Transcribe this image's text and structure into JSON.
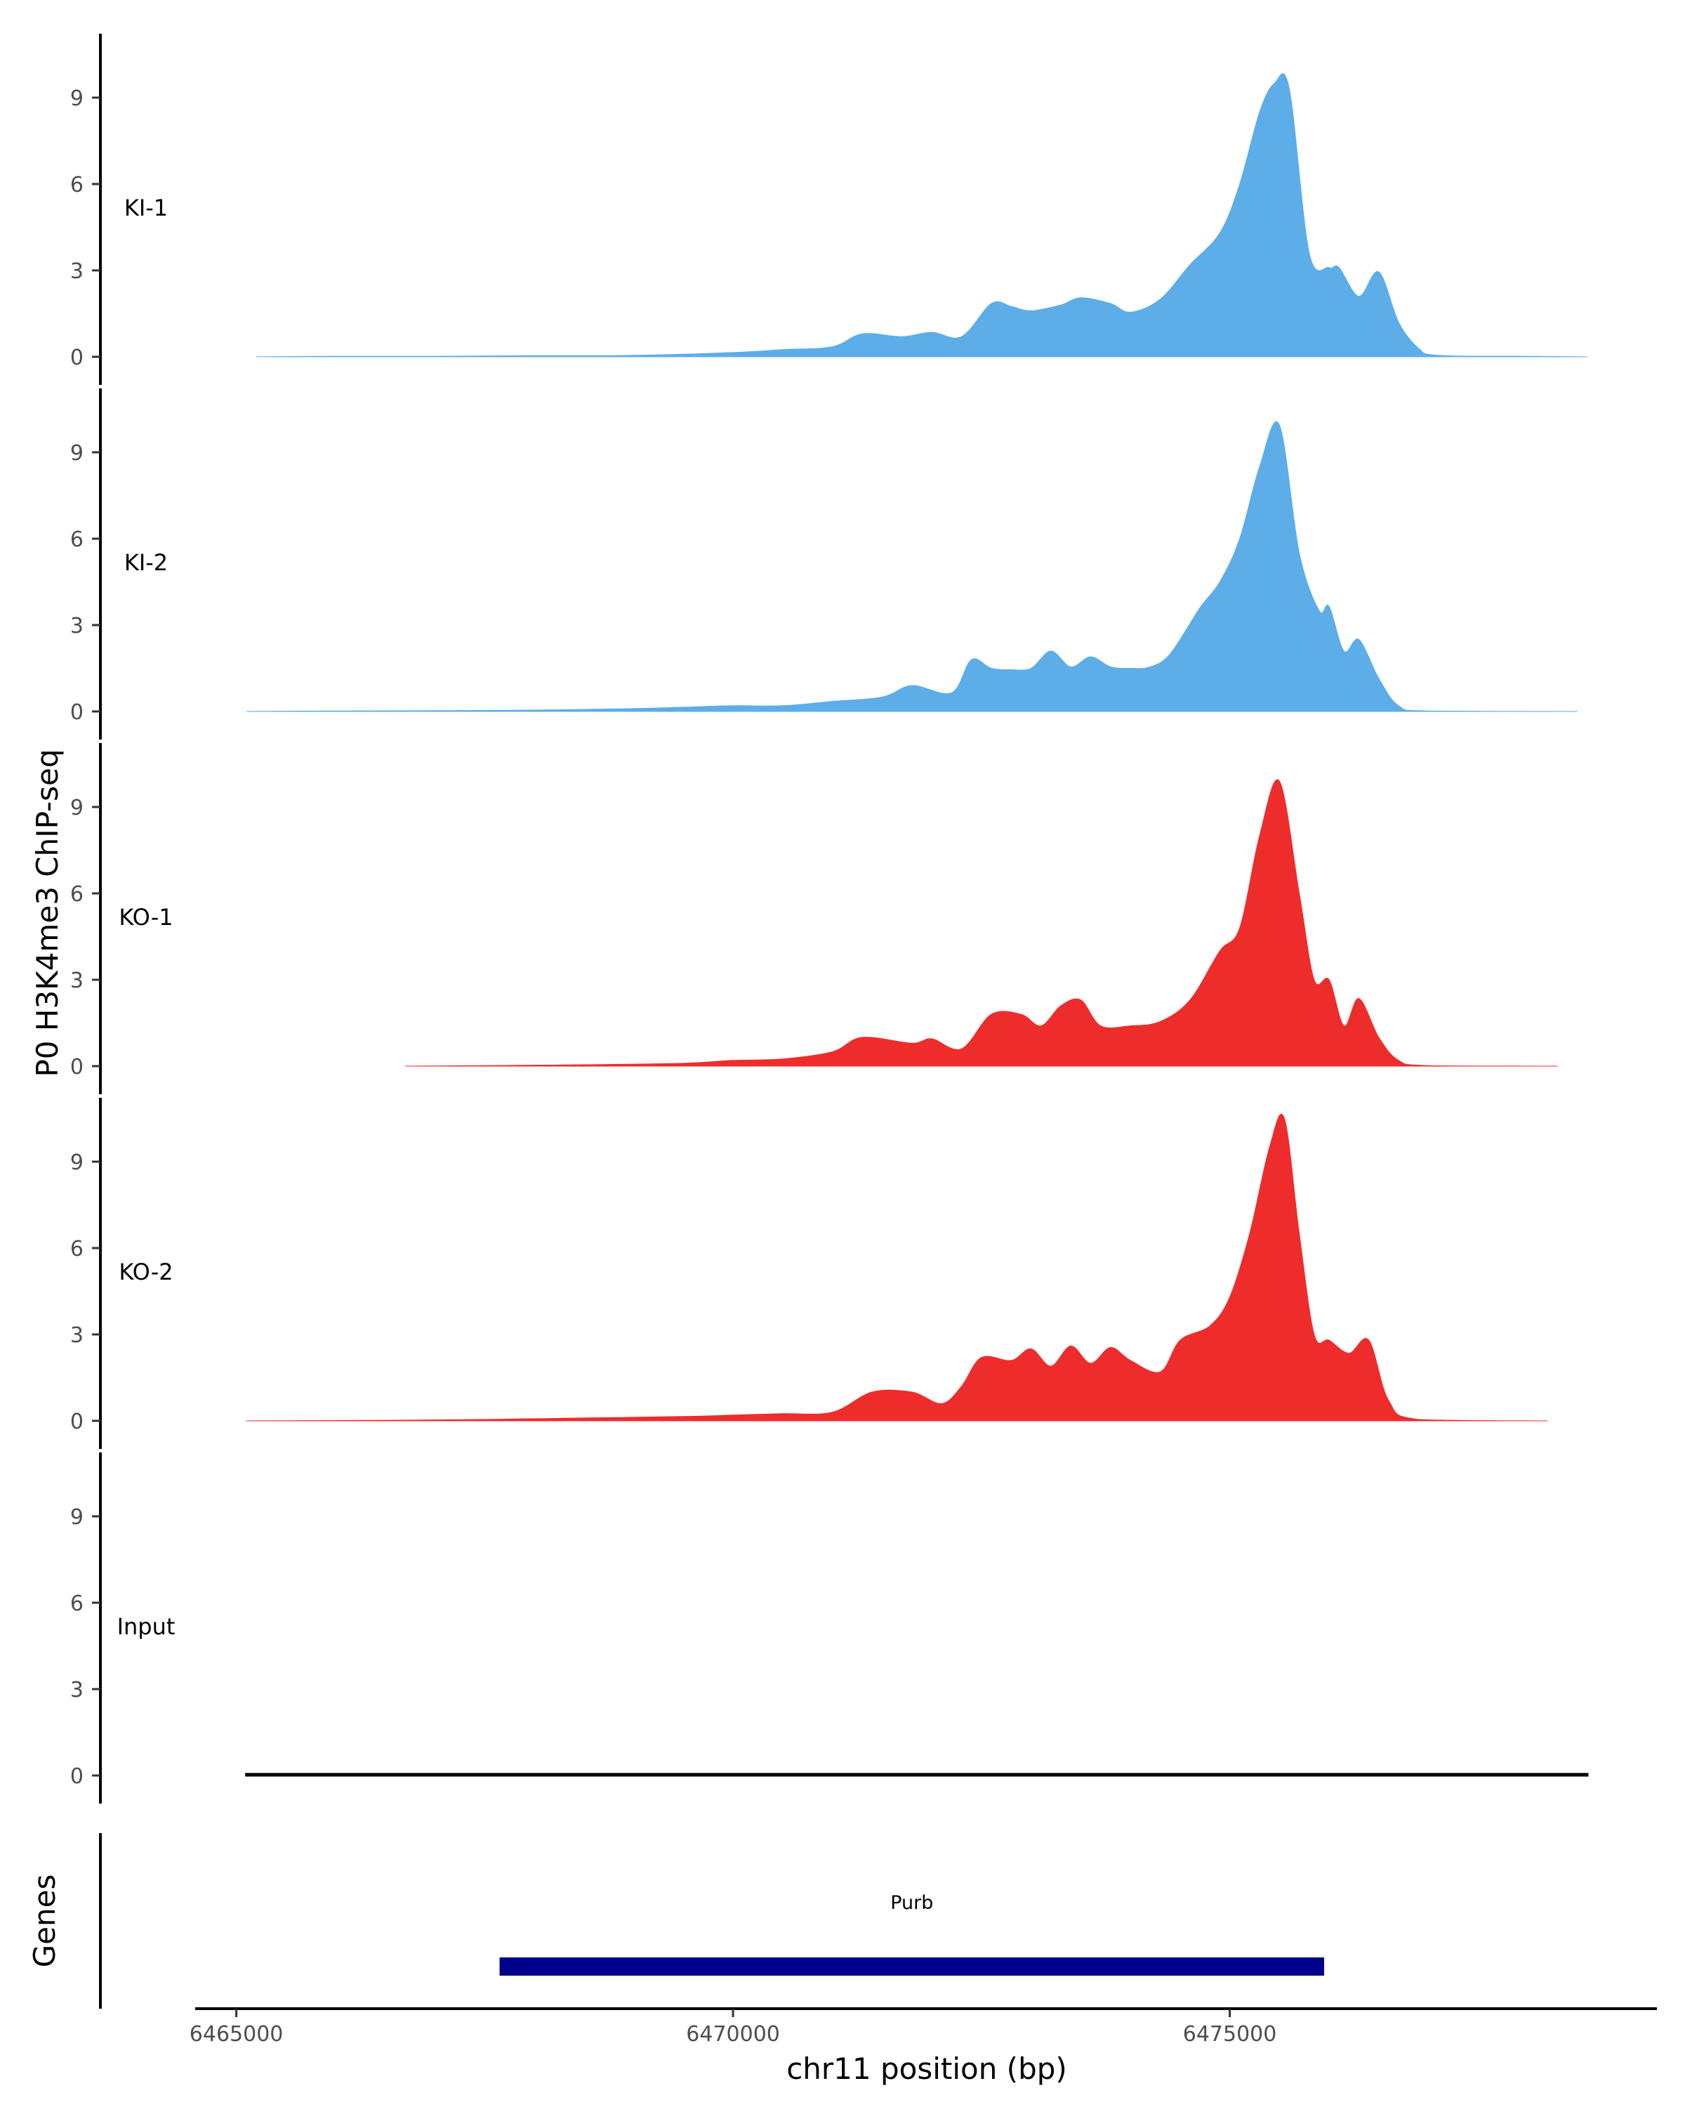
{
  "chart_data": {
    "type": "area",
    "ylabel": "P0 H3K4me3 ChIP-seq",
    "xlabel": "chr11 position (bp)",
    "xlim": [
      6464600,
      6479300
    ],
    "ylim": [
      0,
      11
    ],
    "y_ticks": [
      0,
      3,
      6,
      9
    ],
    "y_tick_labels": [
      "0",
      "3",
      "6",
      "9"
    ],
    "x_ticks": [
      6465000,
      6470000,
      6475000
    ],
    "x_tick_labels": [
      "6465000",
      "6470000",
      "6475000"
    ],
    "series": [
      {
        "name": "KI-1",
        "color": "#5dade9",
        "x": [
          6465200,
          6466000,
          6467000,
          6468000,
          6469000,
          6470000,
          6470500,
          6471000,
          6471300,
          6471700,
          6472000,
          6472300,
          6472600,
          6472800,
          6473000,
          6473300,
          6473500,
          6473800,
          6474000,
          6474300,
          6474600,
          6474900,
          6475100,
          6475300,
          6475450,
          6475600,
          6475800,
          6476000,
          6476100,
          6476300,
          6476500,
          6476700,
          6476900,
          6477100,
          6478000,
          6478600
        ],
        "values": [
          0,
          0.02,
          0.02,
          0.04,
          0.05,
          0.15,
          0.25,
          0.35,
          0.8,
          0.7,
          0.85,
          0.7,
          1.85,
          1.75,
          1.6,
          1.8,
          2.05,
          1.85,
          1.55,
          2.0,
          3.2,
          4.3,
          6.0,
          8.5,
          9.5,
          9.3,
          3.6,
          3.1,
          3.1,
          2.1,
          2.95,
          1.2,
          0.3,
          0.05,
          0.02,
          0
        ]
      },
      {
        "name": "KI-2",
        "color": "#5dade9",
        "x": [
          6465100,
          6466000,
          6467000,
          6468000,
          6469000,
          6469500,
          6470000,
          6470500,
          6471000,
          6471500,
          6471800,
          6472200,
          6472400,
          6472600,
          6472800,
          6473000,
          6473200,
          6473400,
          6473600,
          6473800,
          6474000,
          6474200,
          6474400,
          6474700,
          6474900,
          6475100,
          6475300,
          6475500,
          6475700,
          6475900,
          6476000,
          6476150,
          6476300,
          6476500,
          6476700,
          6477000,
          6478500
        ],
        "values": [
          0,
          0.02,
          0.03,
          0.05,
          0.1,
          0.15,
          0.2,
          0.2,
          0.35,
          0.5,
          0.9,
          0.65,
          1.8,
          1.5,
          1.45,
          1.5,
          2.1,
          1.55,
          1.9,
          1.55,
          1.5,
          1.55,
          2.0,
          3.6,
          4.5,
          6.0,
          8.5,
          9.95,
          5.5,
          3.5,
          3.65,
          2.1,
          2.5,
          1.15,
          0.2,
          0.02,
          0
        ]
      },
      {
        "name": "KO-1",
        "color": "#ee2c2c",
        "x": [
          6466700,
          6467500,
          6468500,
          6469500,
          6470000,
          6470500,
          6471000,
          6471300,
          6471800,
          6472000,
          6472300,
          6472600,
          6472900,
          6473100,
          6473300,
          6473500,
          6473700,
          6474000,
          6474300,
          6474600,
          6474900,
          6475100,
          6475300,
          6475500,
          6475700,
          6475850,
          6476000,
          6476150,
          6476300,
          6476500,
          6476700,
          6477000,
          6478300
        ],
        "values": [
          0,
          0.02,
          0.05,
          0.1,
          0.2,
          0.25,
          0.5,
          1.0,
          0.8,
          0.95,
          0.6,
          1.8,
          1.8,
          1.4,
          2.1,
          2.3,
          1.4,
          1.4,
          1.55,
          2.3,
          4.0,
          4.8,
          8.0,
          9.9,
          6.0,
          3.0,
          3.0,
          1.4,
          2.35,
          1.0,
          0.2,
          0.02,
          0
        ]
      },
      {
        "name": "KO-2",
        "color": "#ee2c2c",
        "x": [
          6465100,
          6466500,
          6467500,
          6468500,
          6469500,
          6470000,
          6470500,
          6471000,
          6471400,
          6471800,
          6472100,
          6472300,
          6472500,
          6472800,
          6473000,
          6473200,
          6473400,
          6473600,
          6473800,
          6474000,
          6474300,
          6474500,
          6474800,
          6475000,
          6475200,
          6475400,
          6475550,
          6475700,
          6475850,
          6476000,
          6476200,
          6476400,
          6476600,
          6476900,
          6478200
        ],
        "values": [
          0,
          0.02,
          0.05,
          0.1,
          0.15,
          0.2,
          0.25,
          0.3,
          1.0,
          1.0,
          0.6,
          1.2,
          2.2,
          2.1,
          2.5,
          1.9,
          2.6,
          2.0,
          2.55,
          2.1,
          1.7,
          2.8,
          3.3,
          4.3,
          6.5,
          9.5,
          10.5,
          6.5,
          3.0,
          2.8,
          2.35,
          2.8,
          0.7,
          0.05,
          0
        ]
      },
      {
        "name": "Input",
        "color": "#000000",
        "x": [
          6465100,
          6466000,
          6467000,
          6468000,
          6469000,
          6470000,
          6471000,
          6472000,
          6473000,
          6474000,
          6475000,
          6476000,
          6477000,
          6478000,
          6478600
        ],
        "values": [
          0.05,
          0.05,
          0.05,
          0.05,
          0.05,
          0.05,
          0.05,
          0.05,
          0.05,
          0.05,
          0.05,
          0.05,
          0.05,
          0.05,
          0.05
        ]
      }
    ],
    "genes_track": {
      "label": "Genes",
      "genes": [
        {
          "name": "Purb",
          "start": 6467650,
          "end": 6475950,
          "color": "#00008b"
        }
      ]
    }
  }
}
